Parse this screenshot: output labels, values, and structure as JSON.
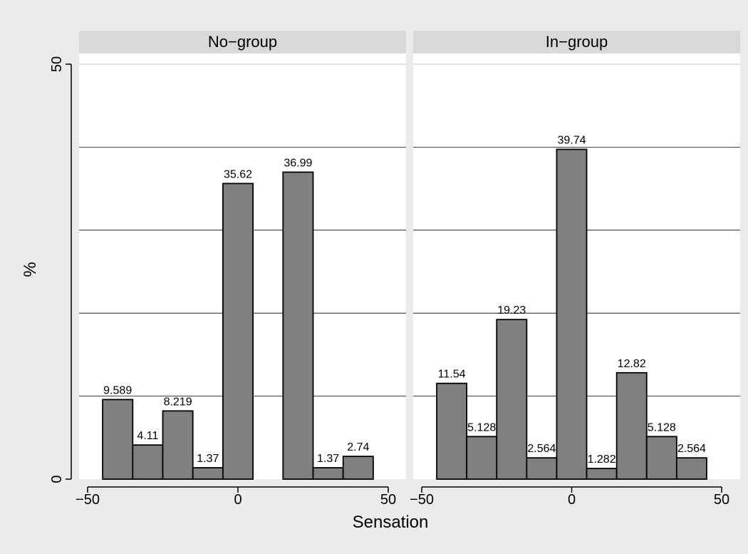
{
  "figure": {
    "ylabel": "%",
    "xlabel": "Sensation",
    "background": "#ebebeb",
    "panel_background": "#ffffff",
    "strip_background": "#d9d9d9",
    "bar_fill": "#808080",
    "bar_stroke": "#000000"
  },
  "chart_data": [
    {
      "type": "bar",
      "title": "No−group",
      "xlabel": "Sensation",
      "ylabel": "%",
      "xlim": [
        -50,
        50
      ],
      "ylim": [
        0,
        50
      ],
      "xticks": [
        -50,
        0,
        50
      ],
      "xtick_labels": [
        "−50",
        "0",
        "50"
      ],
      "yticks": [
        0,
        50
      ],
      "ytick_labels": [
        "0",
        "50"
      ],
      "gridlines_y": [
        10,
        20,
        30,
        40,
        50
      ],
      "grid": true,
      "bin_width": 10,
      "bins": [
        {
          "x": -40,
          "value": 9.589,
          "label": "9.589"
        },
        {
          "x": -30,
          "value": 4.11,
          "label": "4.11"
        },
        {
          "x": -20,
          "value": 8.219,
          "label": "8.219"
        },
        {
          "x": -10,
          "value": 1.37,
          "label": "1.37"
        },
        {
          "x": 0,
          "value": 35.62,
          "label": "35.62"
        },
        {
          "x": 20,
          "value": 36.99,
          "label": "36.99"
        },
        {
          "x": 30,
          "value": 1.37,
          "label": "1.37"
        },
        {
          "x": 40,
          "value": 2.74,
          "label": "2.74"
        }
      ]
    },
    {
      "type": "bar",
      "title": "In−group",
      "xlabel": "Sensation",
      "ylabel": "%",
      "xlim": [
        -50,
        50
      ],
      "ylim": [
        0,
        50
      ],
      "xticks": [
        -50,
        0,
        50
      ],
      "xtick_labels": [
        "−50",
        "0",
        "50"
      ],
      "yticks": [],
      "ytick_labels": [],
      "gridlines_y": [
        10,
        20,
        30,
        40,
        50
      ],
      "grid": true,
      "bin_width": 10,
      "bins": [
        {
          "x": -40,
          "value": 11.54,
          "label": "11.54"
        },
        {
          "x": -30,
          "value": 5.128,
          "label": "5.128"
        },
        {
          "x": -20,
          "value": 19.23,
          "label": "19.23"
        },
        {
          "x": -10,
          "value": 2.564,
          "label": "2.564"
        },
        {
          "x": 0,
          "value": 39.74,
          "label": "39.74"
        },
        {
          "x": 10,
          "value": 1.282,
          "label": "1.282"
        },
        {
          "x": 20,
          "value": 12.82,
          "label": "12.82"
        },
        {
          "x": 30,
          "value": 5.128,
          "label": "5.128"
        },
        {
          "x": 40,
          "value": 2.564,
          "label": "2.564"
        }
      ]
    }
  ]
}
